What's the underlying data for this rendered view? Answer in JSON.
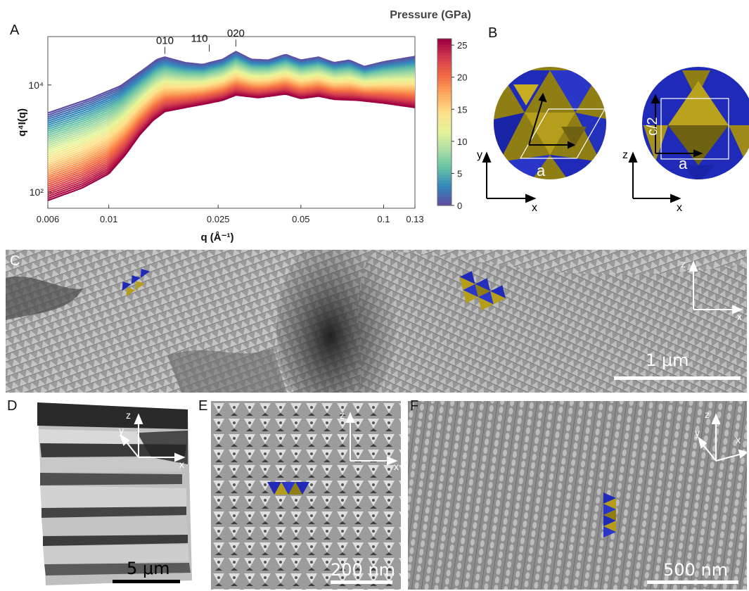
{
  "panels": {
    "a": {
      "label": "A"
    },
    "b": {
      "label": "B"
    },
    "c": {
      "label": "C",
      "scalebar": "1 μm"
    },
    "d": {
      "label": "D",
      "scalebar": "5 μm"
    },
    "e": {
      "label": "E",
      "scalebar": "200 nm"
    },
    "f": {
      "label": "F",
      "scalebar": "500 nm"
    }
  },
  "chart_data": {
    "type": "line",
    "xlabel": "q (Å⁻¹)",
    "ylabel": "q⁴I(q)",
    "xscale": "log",
    "yscale": "log",
    "xlim": [
      0.006,
      0.13
    ],
    "ylim": [
      50,
      80000
    ],
    "xticks": [
      0.006,
      0.01,
      0.025,
      0.05,
      0.1,
      0.13
    ],
    "xtick_labels": [
      "0.006",
      "0.01",
      "0.025",
      "0.05",
      "0.1",
      "0.13"
    ],
    "yticks": [
      100,
      10000
    ],
    "ytick_labels": [
      "10²",
      "10⁴"
    ],
    "colorbar": {
      "title": "Pressure (GPa)",
      "ticks": [
        0,
        5,
        10,
        15,
        20,
        25
      ],
      "range": [
        0,
        26
      ],
      "colormap": "Spectral_r",
      "colors": [
        "#5e4fa2",
        "#3288bd",
        "#66c2a5",
        "#abdda4",
        "#e6f598",
        "#fee08b",
        "#fdae61",
        "#f46d43",
        "#d53e4f",
        "#9e0142"
      ]
    },
    "peaks": [
      {
        "label": "010",
        "q": 0.016
      },
      {
        "label": "110",
        "q": 0.0232
      },
      {
        "label": "020",
        "q": 0.029
      }
    ],
    "series_count": 44,
    "profiles": {
      "low_pressure_q": [
        0.006,
        0.0085,
        0.011,
        0.0135,
        0.015,
        0.016,
        0.019,
        0.022,
        0.0232,
        0.026,
        0.029,
        0.033,
        0.038,
        0.044,
        0.05,
        0.058,
        0.066,
        0.075,
        0.085,
        0.1,
        0.13
      ],
      "low_pressure_y": [
        3000,
        5500,
        9500,
        20000,
        30000,
        33000,
        26000,
        24000,
        26000,
        30000,
        42000,
        30000,
        29000,
        37000,
        29000,
        33000,
        26000,
        29000,
        22000,
        27000,
        34000
      ],
      "high_pressure_q": [
        0.006,
        0.008,
        0.01,
        0.0115,
        0.013,
        0.0145,
        0.016,
        0.019,
        0.0232,
        0.026,
        0.029,
        0.035,
        0.044,
        0.05,
        0.058,
        0.066,
        0.08,
        0.1,
        0.13
      ],
      "high_pressure_y": [
        70,
        120,
        220,
        500,
        1200,
        2200,
        3200,
        3800,
        4600,
        5200,
        6500,
        5800,
        6800,
        5600,
        6200,
        5400,
        5200,
        4600,
        3800
      ]
    }
  }
}
